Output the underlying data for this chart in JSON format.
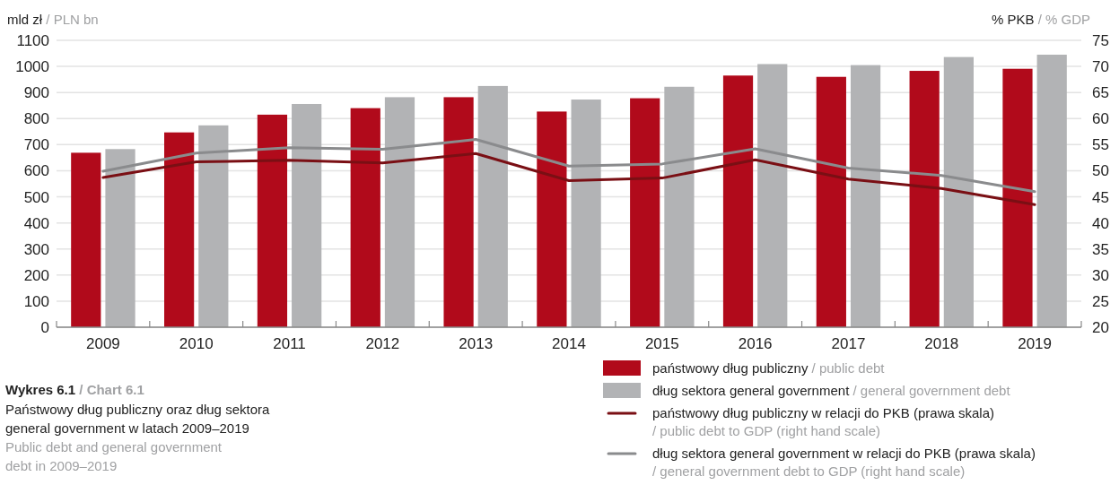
{
  "chart_data": {
    "type": "bar",
    "title": "Wykres 6.1 / Chart 6.1",
    "subtitle": "Państwowy dług publiczny oraz dług sektora general government w latach 2009–2019",
    "annotations": [
      "Public debt and general government debt in 2009–2019"
    ],
    "ylabel": "mld zł / PLN bn",
    "y2label": "% PKB / % GDP",
    "categories": [
      "2009",
      "2010",
      "2011",
      "2012",
      "2013",
      "2014",
      "2015",
      "2016",
      "2017",
      "2018",
      "2019"
    ],
    "series": [
      {
        "name": "państwowy dług publiczny / public debt",
        "color": "#b10a1b",
        "values": [
          669,
          747,
          815,
          840,
          882,
          827,
          878,
          965,
          960,
          983,
          991
        ]
      },
      {
        "name": "dług sektora general government / general government debt",
        "color": "#b2b3b5",
        "values": [
          683,
          774,
          856,
          882,
          925,
          873,
          922,
          1009,
          1005,
          1036,
          1045
        ]
      },
      {
        "name": "państwowy dług publiczny w relacji do PKB (prawa skala) / public debt to GDP (right hand scale)",
        "type": "line",
        "axis": "y2",
        "color": "#7a0f14",
        "values": [
          48.7,
          51.7,
          52.0,
          51.5,
          53.3,
          48.1,
          48.6,
          52.1,
          48.4,
          46.6,
          43.5
        ]
      },
      {
        "name": "dług sektora general government w relacji do PKB (prawa skala) / general government debt to GDP (right hand scale)",
        "type": "line",
        "axis": "y2",
        "color": "#8a8b8d",
        "values": [
          49.9,
          53.4,
          54.4,
          54.1,
          56.0,
          50.9,
          51.3,
          54.2,
          50.5,
          49.1,
          46.0
        ]
      }
    ],
    "ylim": [
      0,
      1100
    ],
    "yticks": [
      0,
      100,
      200,
      300,
      400,
      500,
      600,
      700,
      800,
      900,
      1000,
      1100
    ],
    "y2lim": [
      20,
      75
    ],
    "y2ticks": [
      20,
      25,
      30,
      35,
      40,
      45,
      50,
      55,
      60,
      65,
      70,
      75
    ],
    "grid": "y",
    "legend": "bottom right"
  }
}
